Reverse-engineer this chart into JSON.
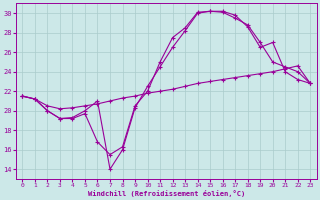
{
  "xlabel": "Windchill (Refroidissement éolien,°C)",
  "bg_color": "#cce8e8",
  "grid_color": "#aacccc",
  "line_color": "#990099",
  "xlim": [
    -0.5,
    23.5
  ],
  "ylim": [
    13,
    31
  ],
  "yticks": [
    14,
    16,
    18,
    20,
    22,
    24,
    26,
    28,
    30
  ],
  "xticks": [
    0,
    1,
    2,
    3,
    4,
    5,
    6,
    7,
    8,
    9,
    10,
    11,
    12,
    13,
    14,
    15,
    16,
    17,
    18,
    19,
    20,
    21,
    22,
    23
  ],
  "line1_x": [
    0,
    1,
    2,
    3,
    4,
    5,
    6,
    7,
    8,
    9,
    10,
    11,
    12,
    13,
    14,
    15,
    16,
    17,
    18,
    19,
    20,
    21,
    22,
    23
  ],
  "line1_y": [
    21.5,
    21.2,
    20.0,
    19.2,
    19.2,
    19.7,
    16.8,
    15.5,
    16.3,
    20.5,
    22.0,
    25.0,
    27.5,
    28.5,
    30.1,
    30.2,
    30.1,
    29.5,
    28.8,
    27.0,
    25.0,
    24.5,
    24.0,
    22.8
  ],
  "line2_x": [
    0,
    1,
    2,
    3,
    4,
    5,
    6,
    7,
    8,
    9,
    10,
    11,
    12,
    13,
    14,
    15,
    16,
    17,
    18,
    19,
    20,
    21,
    22,
    23
  ],
  "line2_y": [
    21.5,
    21.2,
    20.0,
    19.2,
    19.3,
    20.0,
    21.0,
    14.0,
    16.0,
    20.3,
    22.5,
    24.5,
    26.5,
    28.2,
    30.0,
    30.2,
    30.2,
    29.8,
    28.6,
    26.5,
    27.0,
    24.0,
    23.2,
    22.8
  ],
  "line3_x": [
    0,
    1,
    2,
    3,
    4,
    5,
    6,
    7,
    8,
    9,
    10,
    11,
    12,
    13,
    14,
    15,
    16,
    17,
    18,
    19,
    20,
    21,
    22,
    23
  ],
  "line3_y": [
    21.5,
    21.2,
    20.5,
    20.2,
    20.3,
    20.5,
    20.7,
    21.0,
    21.3,
    21.5,
    21.8,
    22.0,
    22.2,
    22.5,
    22.8,
    23.0,
    23.2,
    23.4,
    23.6,
    23.8,
    24.0,
    24.3,
    24.6,
    22.8
  ]
}
